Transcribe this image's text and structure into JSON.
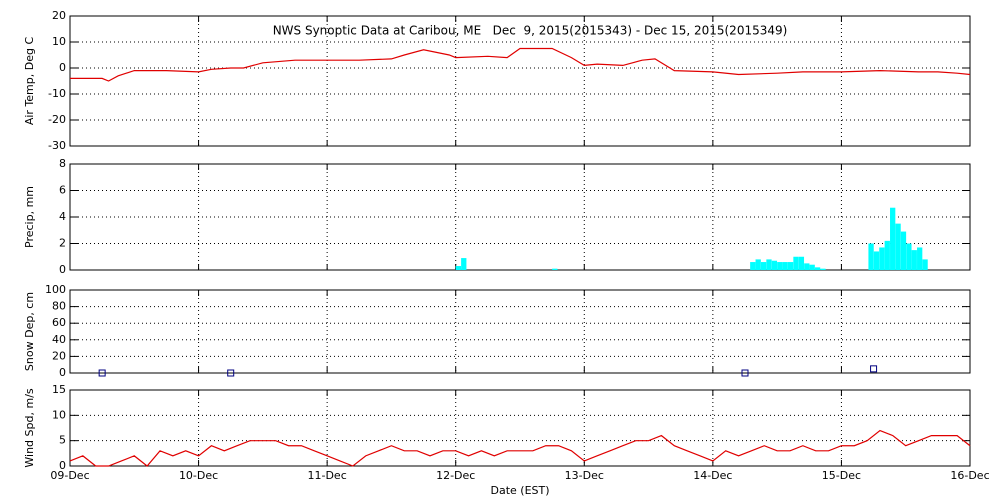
{
  "chart_data": [
    {
      "type": "line",
      "title": "NWS Synoptic Data at Caribou, ME   Dec  9, 2015(2015343) - Dec 15, 2015(2015349)",
      "ylabel": "Air Temp, Deg C",
      "color": "#e00000",
      "ylim": [
        -30,
        20
      ],
      "yticks": [
        -30,
        -20,
        -10,
        0,
        10,
        20
      ],
      "xlim": [
        0,
        7
      ],
      "grid": true,
      "x": [
        0,
        0.15,
        0.25,
        0.3,
        0.375,
        0.5,
        0.75,
        1.0,
        1.1,
        1.25,
        1.35,
        1.5,
        1.75,
        2.0,
        2.25,
        2.5,
        2.6,
        2.75,
        2.85,
        2.95,
        3.0,
        3.25,
        3.4,
        3.5,
        3.75,
        3.9,
        4.0,
        4.1,
        4.3,
        4.45,
        4.55,
        4.7,
        5.0,
        5.2,
        5.5,
        5.7,
        6.0,
        6.3,
        6.6,
        6.75,
        6.9,
        7.0
      ],
      "values": [
        -4,
        -4,
        -4,
        -5,
        -3,
        -1,
        -1,
        -1.5,
        -0.5,
        0,
        0,
        2,
        3,
        3,
        3,
        3.5,
        5,
        7,
        6,
        5,
        4,
        4.5,
        4,
        7.5,
        7.5,
        4,
        1,
        1.5,
        1,
        3,
        3.5,
        -1,
        -1.5,
        -2.5,
        -2,
        -1.5,
        -1.5,
        -1,
        -1.5,
        -1.5,
        -2,
        -2.5
      ]
    },
    {
      "type": "bar",
      "ylabel": "Precip, mm",
      "color": "#00ffff",
      "ylim": [
        0,
        8
      ],
      "yticks": [
        0,
        2,
        4,
        6,
        8
      ],
      "xlim": [
        0,
        7
      ],
      "grid": true,
      "x": [
        3.0,
        3.042,
        3.75,
        5.29,
        5.332,
        5.374,
        5.416,
        5.458,
        5.5,
        5.542,
        5.584,
        5.626,
        5.668,
        5.71,
        5.752,
        5.794,
        5.836,
        6.21,
        6.252,
        6.294,
        6.336,
        6.378,
        6.42,
        6.462,
        6.504,
        6.546,
        6.588,
        6.63
      ],
      "values": [
        0.3,
        0.9,
        0.1,
        0.6,
        0.8,
        0.6,
        0.8,
        0.7,
        0.6,
        0.6,
        0.6,
        1.0,
        1.0,
        0.5,
        0.4,
        0.2,
        0.1,
        2.0,
        1.4,
        1.7,
        2.2,
        4.7,
        3.5,
        2.9,
        2.0,
        1.5,
        1.7,
        0.8
      ]
    },
    {
      "type": "scatter",
      "ylabel": "Snow Dep, cm",
      "color": "#000080",
      "ylim": [
        0,
        100
      ],
      "yticks": [
        0,
        20,
        40,
        60,
        80,
        100
      ],
      "xlim": [
        0,
        7
      ],
      "grid": true,
      "x": [
        0.25,
        1.25,
        5.25,
        6.25
      ],
      "values": [
        0,
        0,
        0,
        5
      ]
    },
    {
      "type": "line",
      "ylabel": "Wind Spd, m/s",
      "xlabel": "Date (EST)",
      "color": "#e00000",
      "ylim": [
        0,
        15
      ],
      "yticks": [
        0,
        5,
        10,
        15
      ],
      "xlim": [
        0,
        7
      ],
      "grid": true,
      "xticks": [
        {
          "value": 0,
          "label": "09-Dec"
        },
        {
          "value": 1,
          "label": "10-Dec"
        },
        {
          "value": 2,
          "label": "11-Dec"
        },
        {
          "value": 3,
          "label": "12-Dec"
        },
        {
          "value": 4,
          "label": "13-Dec"
        },
        {
          "value": 5,
          "label": "14-Dec"
        },
        {
          "value": 6,
          "label": "15-Dec"
        },
        {
          "value": 7,
          "label": "16-Dec"
        }
      ],
      "x": [
        0,
        0.1,
        0.2,
        0.3,
        0.4,
        0.5,
        0.6,
        0.7,
        0.8,
        0.9,
        1.0,
        1.1,
        1.2,
        1.3,
        1.4,
        1.5,
        1.6,
        1.7,
        1.8,
        1.9,
        2.0,
        2.1,
        2.2,
        2.3,
        2.4,
        2.5,
        2.6,
        2.7,
        2.8,
        2.9,
        3.0,
        3.1,
        3.2,
        3.3,
        3.4,
        3.5,
        3.6,
        3.7,
        3.8,
        3.9,
        4.0,
        4.1,
        4.2,
        4.3,
        4.4,
        4.5,
        4.6,
        4.7,
        4.8,
        4.9,
        5.0,
        5.1,
        5.2,
        5.3,
        5.4,
        5.5,
        5.6,
        5.7,
        5.8,
        5.9,
        6.0,
        6.1,
        6.2,
        6.3,
        6.4,
        6.5,
        6.6,
        6.7,
        6.8,
        6.9,
        7.0
      ],
      "values": [
        1,
        2,
        0,
        0,
        1,
        2,
        0,
        3,
        2,
        3,
        2,
        4,
        3,
        4,
        5,
        5,
        5,
        4,
        4,
        3,
        2,
        1,
        0,
        2,
        3,
        4,
        3,
        3,
        2,
        3,
        3,
        2,
        3,
        2,
        3,
        3,
        3,
        4,
        4,
        3,
        1,
        2,
        3,
        4,
        5,
        5,
        6,
        4,
        3,
        2,
        1,
        3,
        2,
        3,
        4,
        3,
        3,
        4,
        3,
        3,
        4,
        4,
        5,
        7,
        6,
        4,
        5,
        6,
        6,
        6,
        4
      ]
    }
  ]
}
